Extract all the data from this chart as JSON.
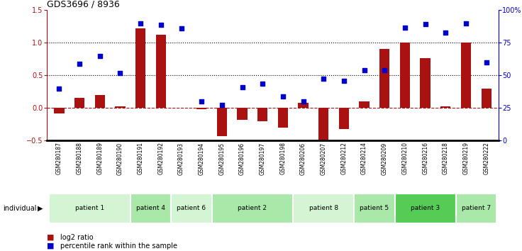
{
  "title": "GDS3696 / 8936",
  "samples": [
    "GSM280187",
    "GSM280188",
    "GSM280189",
    "GSM280190",
    "GSM280191",
    "GSM280192",
    "GSM280193",
    "GSM280194",
    "GSM280195",
    "GSM280196",
    "GSM280197",
    "GSM280198",
    "GSM280206",
    "GSM280207",
    "GSM280212",
    "GSM280214",
    "GSM280209",
    "GSM280210",
    "GSM280216",
    "GSM280218",
    "GSM280219",
    "GSM280222"
  ],
  "log2_ratio": [
    -0.08,
    0.15,
    0.2,
    0.02,
    1.22,
    1.12,
    0.0,
    -0.02,
    -0.43,
    -0.18,
    -0.2,
    -0.3,
    0.08,
    -0.5,
    -0.32,
    0.1,
    0.9,
    1.0,
    0.76,
    0.02,
    1.0,
    0.3
  ],
  "percentile_rank": [
    0.3,
    0.68,
    0.8,
    0.53,
    1.3,
    1.27,
    1.22,
    0.1,
    0.05,
    0.32,
    0.37,
    0.18,
    0.1,
    0.45,
    0.42,
    0.58,
    0.58,
    1.23,
    1.28,
    1.15,
    1.3,
    0.7
  ],
  "patients": [
    {
      "label": "patient 1",
      "start": 0,
      "end": 4,
      "color": "#d4f5d4"
    },
    {
      "label": "patient 4",
      "start": 4,
      "end": 6,
      "color": "#aae8aa"
    },
    {
      "label": "patient 6",
      "start": 6,
      "end": 8,
      "color": "#d4f5d4"
    },
    {
      "label": "patient 2",
      "start": 8,
      "end": 12,
      "color": "#aae8aa"
    },
    {
      "label": "patient 8",
      "start": 12,
      "end": 15,
      "color": "#d4f5d4"
    },
    {
      "label": "patient 5",
      "start": 15,
      "end": 17,
      "color": "#aae8aa"
    },
    {
      "label": "patient 3",
      "start": 17,
      "end": 20,
      "color": "#55cc55"
    },
    {
      "label": "patient 7",
      "start": 20,
      "end": 22,
      "color": "#aae8aa"
    }
  ],
  "bar_color": "#aa1111",
  "scatter_color": "#0000cc",
  "ylim_left": [
    -0.5,
    1.5
  ],
  "ylim_right": [
    0,
    100
  ],
  "yticks_left": [
    -0.5,
    0.0,
    0.5,
    1.0,
    1.5
  ],
  "yticks_right": [
    0,
    25,
    50,
    75,
    100
  ],
  "bg_color": "#cccccc",
  "plot_bg": "#ffffff"
}
